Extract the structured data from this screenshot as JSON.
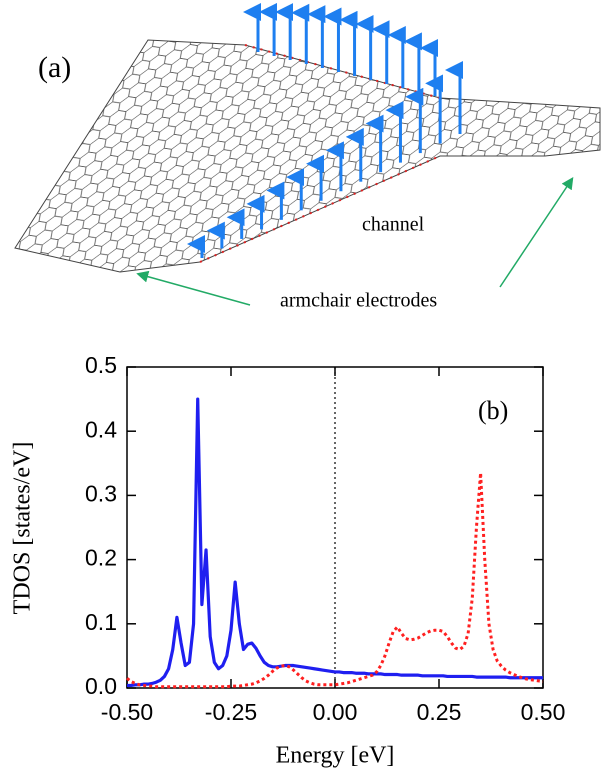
{
  "diagram": {
    "panel_label": "(a)",
    "channel_label": "channel",
    "electrodes_label": "armchair electrodes"
  },
  "chart_data": {
    "type": "line",
    "annotation": "(b)",
    "x_label": "Energy [eV]",
    "y_label": "TDOS [states/eV]",
    "xlim": [
      -0.5,
      0.5
    ],
    "ylim": [
      0,
      0.5
    ],
    "xticks": [
      {
        "value": -0.5,
        "label": "-0.50"
      },
      -0.25,
      {
        "value": 0,
        "label": "0.00"
      },
      0.25,
      {
        "value": 0.5,
        "label": "0.50"
      }
    ],
    "yticks": [
      {
        "value": 0,
        "label": "0.0"
      },
      0.1,
      0.2,
      0.3,
      0.4,
      0.5
    ],
    "reference_line_x": 0,
    "x": [
      -0.5,
      -0.49,
      -0.48,
      -0.47,
      -0.46,
      -0.45,
      -0.44,
      -0.43,
      -0.42,
      -0.41,
      -0.4,
      -0.39,
      -0.38,
      -0.37,
      -0.36,
      -0.35,
      -0.34,
      -0.33,
      -0.32,
      -0.31,
      -0.3,
      -0.29,
      -0.28,
      -0.27,
      -0.26,
      -0.25,
      -0.24,
      -0.23,
      -0.22,
      -0.21,
      -0.2,
      -0.19,
      -0.18,
      -0.17,
      -0.16,
      -0.15,
      -0.14,
      -0.13,
      -0.12,
      -0.11,
      -0.1,
      -0.09,
      -0.08,
      -0.07,
      -0.06,
      -0.05,
      -0.04,
      -0.03,
      -0.02,
      -0.01,
      0,
      0.01,
      0.02,
      0.03,
      0.04,
      0.05,
      0.06,
      0.07,
      0.08,
      0.09,
      0.1,
      0.11,
      0.12,
      0.13,
      0.14,
      0.15,
      0.16,
      0.17,
      0.18,
      0.19,
      0.2,
      0.21,
      0.22,
      0.23,
      0.24,
      0.25,
      0.26,
      0.27,
      0.28,
      0.29,
      0.3,
      0.31,
      0.32,
      0.33,
      0.34,
      0.35,
      0.36,
      0.37,
      0.38,
      0.39,
      0.4,
      0.41,
      0.42,
      0.43,
      0.44,
      0.45,
      0.46,
      0.47,
      0.48,
      0.49,
      0.5
    ],
    "series": [
      {
        "color": "#1f1ff0",
        "style": "solid",
        "values": [
          0.004,
          0.004,
          0.005,
          0.005,
          0.006,
          0.006,
          0.007,
          0.009,
          0.012,
          0.018,
          0.03,
          0.06,
          0.11,
          0.07,
          0.035,
          0.04,
          0.1,
          0.45,
          0.13,
          0.215,
          0.08,
          0.04,
          0.03,
          0.035,
          0.05,
          0.09,
          0.165,
          0.1,
          0.06,
          0.068,
          0.07,
          0.062,
          0.05,
          0.04,
          0.035,
          0.033,
          0.033,
          0.034,
          0.035,
          0.035,
          0.035,
          0.034,
          0.033,
          0.032,
          0.031,
          0.03,
          0.029,
          0.028,
          0.027,
          0.026,
          0.025,
          0.025,
          0.024,
          0.024,
          0.024,
          0.023,
          0.023,
          0.023,
          0.022,
          0.022,
          0.022,
          0.022,
          0.021,
          0.021,
          0.021,
          0.021,
          0.02,
          0.02,
          0.02,
          0.02,
          0.02,
          0.019,
          0.019,
          0.019,
          0.019,
          0.019,
          0.019,
          0.018,
          0.018,
          0.018,
          0.018,
          0.018,
          0.018,
          0.018,
          0.017,
          0.017,
          0.017,
          0.017,
          0.017,
          0.017,
          0.017,
          0.017,
          0.016,
          0.016,
          0.016,
          0.016,
          0.016,
          0.016,
          0.016,
          0.016,
          0.016
        ]
      },
      {
        "color": "#ff2020",
        "style": "dotted",
        "values": [
          0.015,
          0.01,
          0.007,
          0.005,
          0.004,
          0.003,
          0.003,
          0.002,
          0.002,
          0.002,
          0.002,
          0.002,
          0.002,
          0.002,
          0.002,
          0.002,
          0.002,
          0.002,
          0.002,
          0.002,
          0.002,
          0.002,
          0.002,
          0.002,
          0.002,
          0.003,
          0.003,
          0.003,
          0.004,
          0.005,
          0.006,
          0.008,
          0.011,
          0.015,
          0.02,
          0.026,
          0.031,
          0.034,
          0.035,
          0.033,
          0.028,
          0.022,
          0.016,
          0.011,
          0.008,
          0.006,
          0.005,
          0.005,
          0.005,
          0.005,
          0.005,
          0.006,
          0.007,
          0.008,
          0.01,
          0.012,
          0.014,
          0.016,
          0.018,
          0.02,
          0.025,
          0.035,
          0.05,
          0.07,
          0.088,
          0.095,
          0.085,
          0.077,
          0.075,
          0.076,
          0.078,
          0.082,
          0.086,
          0.089,
          0.09,
          0.09,
          0.088,
          0.08,
          0.07,
          0.062,
          0.06,
          0.065,
          0.085,
          0.14,
          0.25,
          0.335,
          0.2,
          0.1,
          0.06,
          0.042,
          0.034,
          0.028,
          0.024,
          0.021,
          0.018,
          0.016,
          0.014,
          0.013,
          0.012,
          0.011,
          0.01
        ]
      }
    ]
  }
}
